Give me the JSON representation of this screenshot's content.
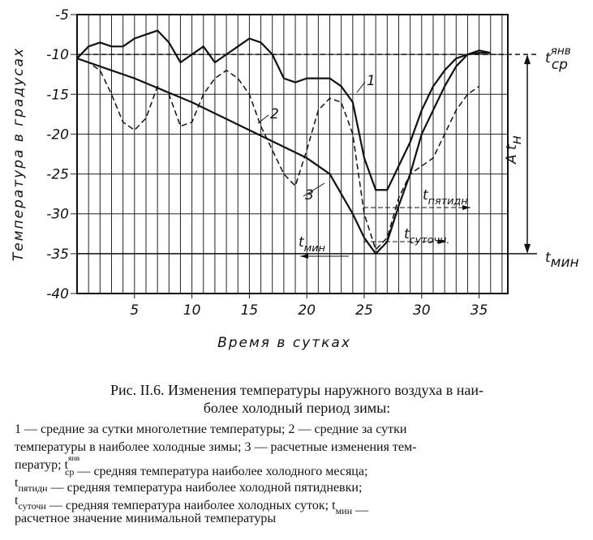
{
  "chart_data": {
    "type": "line",
    "ylabel": "Температура в градусах",
    "xlabel": "Время в сутках",
    "xlim": [
      0,
      37.5
    ],
    "ylim": [
      -40,
      -5
    ],
    "xticks": [
      5,
      10,
      15,
      20,
      25,
      30,
      35
    ],
    "yticks": [
      -40,
      -35,
      -30,
      -25,
      -20,
      -15,
      -10,
      -5
    ],
    "xgrid_step": 1,
    "grid": true,
    "series": [
      {
        "name": "1",
        "color": "#111",
        "style": "solid",
        "x": [
          0,
          1,
          2,
          3,
          4,
          5,
          6,
          7,
          8,
          9,
          10,
          11,
          12,
          13,
          14,
          15,
          16,
          17,
          18,
          19,
          20,
          21,
          22,
          23,
          24,
          25,
          26,
          27,
          28,
          29,
          30,
          31,
          32,
          33,
          34,
          35,
          36
        ],
        "values": [
          -10.5,
          -9,
          -8.5,
          -9,
          -9,
          -8,
          -7.5,
          -7,
          -8.5,
          -11,
          -10,
          -9,
          -11,
          -10,
          -9,
          -8,
          -8.5,
          -10,
          -13,
          -13.5,
          -13,
          -13,
          -13,
          -14,
          -16,
          -23,
          -27,
          -27,
          -24,
          -21,
          -17,
          -14,
          -12,
          -10.5,
          -10,
          -9.8,
          -9.8
        ]
      },
      {
        "name": "2",
        "color": "#111",
        "style": "dashed",
        "x": [
          0,
          1,
          2,
          3,
          4,
          5,
          6,
          7,
          8,
          9,
          10,
          11,
          12,
          13,
          14,
          15,
          16,
          17,
          18,
          19,
          20,
          21,
          22,
          23,
          24,
          25,
          26,
          27,
          28,
          29,
          30,
          31,
          32,
          33,
          34,
          35
        ],
        "values": [
          -10.5,
          -11,
          -12,
          -15,
          -18.5,
          -19.5,
          -18,
          -14,
          -15,
          -19,
          -18.5,
          -15,
          -13,
          -12,
          -13,
          -15,
          -19,
          -22,
          -25,
          -26.5,
          -22,
          -17,
          -15.5,
          -16,
          -20,
          -30,
          -34.5,
          -33,
          -28,
          -25,
          -24,
          -23,
          -20,
          -17,
          -15,
          -14
        ]
      },
      {
        "name": "3",
        "color": "#111",
        "style": "solid",
        "x": [
          0,
          5,
          10,
          15,
          20,
          22,
          24,
          25,
          26,
          27,
          28,
          29,
          30,
          31,
          32,
          33,
          34,
          35,
          36
        ],
        "values": [
          -10.5,
          -13,
          -16,
          -19.5,
          -23,
          -25,
          -30,
          -33,
          -35,
          -33.5,
          -29,
          -25,
          -20,
          -17,
          -14,
          -11.5,
          -10,
          -9.5,
          -9.8
        ]
      }
    ],
    "reference_lines": [
      {
        "y": -10,
        "style": "dashed",
        "label": {
          "base": "t",
          "sub": "ср",
          "sup": "янв"
        }
      },
      {
        "y": -35,
        "style": "solid",
        "label": {
          "base": "t",
          "sub": "мин"
        }
      }
    ],
    "amplitude_label": {
      "base": "A t",
      "sub": "н"
    },
    "annotations": [
      {
        "base": "t",
        "sub": "пятидн"
      },
      {
        "base": "t",
        "sub": "суточн."
      },
      {
        "base": "t",
        "sub": "мин"
      }
    ]
  },
  "caption": {
    "title_lines": [
      "Рис. II.6. Изменения температуры наружного воздуха в наи-",
      "более холодный период зимы:"
    ],
    "legend_lines": [
      [
        {
          "text": "1 — средние за сутки многолетние температуры; 2 — средние за сутки"
        }
      ],
      [
        {
          "text": "температуры в наиболее холодные зимы; 3 — расчетные изменения тем-"
        }
      ],
      [
        {
          "text": "ператур; "
        },
        {
          "base": "t",
          "sub": "ср",
          "sup": "янв"
        },
        {
          "text": " — средняя температура наиболее холодного месяца;"
        }
      ],
      [
        {
          "base": "t",
          "sub": "пятидн"
        },
        {
          "text": " — средняя температура наиболее холодной пятидневки;"
        }
      ],
      [
        {
          "base": "t",
          "sub": "суточн"
        },
        {
          "text": " — средняя температура наиболее холодных суток; "
        },
        {
          "base": "t",
          "sub": "мин"
        },
        {
          "text": " —"
        }
      ],
      [
        {
          "text": "расчетное значение минимальной температуры"
        }
      ]
    ]
  }
}
